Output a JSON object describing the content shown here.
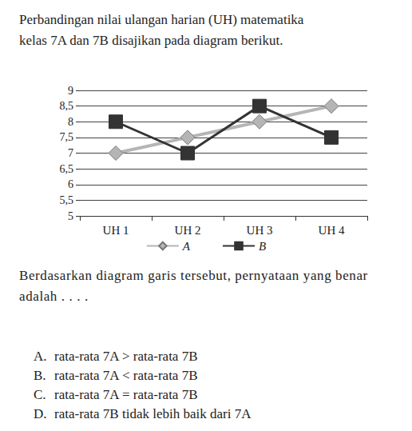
{
  "header": {
    "lines": [
      "Perbandingan nilai ulangan harian (UH) matematika",
      "kelas 7A dan 7B disajikan pada diagram berikut."
    ]
  },
  "chart_data": {
    "type": "line",
    "categories": [
      "UH 1",
      "UH 2",
      "UH 3",
      "UH 4"
    ],
    "series": [
      {
        "name": "A",
        "color": "#b5b5b5",
        "marker": "diamond",
        "values": [
          7,
          7.5,
          8,
          8.5
        ]
      },
      {
        "name": "B",
        "color": "#333333",
        "marker": "square",
        "values": [
          8,
          7,
          8.5,
          7.5
        ]
      }
    ],
    "ylim": [
      5,
      9
    ],
    "yticks": [
      5,
      {
        "value": 5.5,
        "label": "5,5"
      },
      6,
      {
        "value": 6.5,
        "label": "6,5"
      },
      7,
      {
        "value": 7.5,
        "label": "7,5"
      },
      8,
      {
        "value": 8.5,
        "label": "8,5"
      },
      9
    ],
    "grid": true,
    "legend": "bottom"
  },
  "question": {
    "text": "Berdasarkan diagram garis tersebut, pernyataan yang benar adalah . . . .",
    "options": [
      {
        "label": "A.",
        "text": "rata-rata 7A > rata-rata 7B"
      },
      {
        "label": "B.",
        "text": "rata-rata 7A < rata-rata 7B"
      },
      {
        "label": "C.",
        "text": "rata-rata 7A = rata-rata 7B"
      },
      {
        "label": "D.",
        "text": "rata-rata 7B tidak lebih baik dari 7A"
      }
    ]
  }
}
